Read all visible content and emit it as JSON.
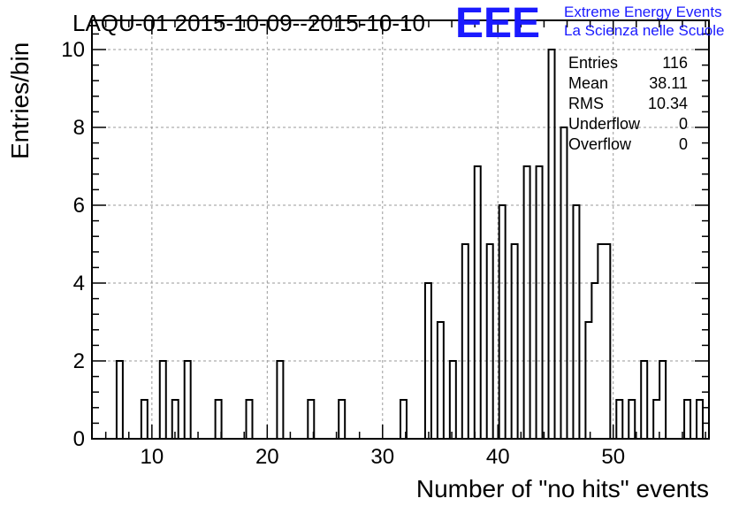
{
  "chart_data": {
    "type": "bar",
    "title": "LAQU-01 2015-10-09--2015-10-10",
    "xlabel": "Number of \"no hits\" events",
    "ylabel": "Entries/bin",
    "xlim": [
      4.8,
      58.3
    ],
    "ylim": [
      0,
      10.75
    ],
    "bin_width": 0.535,
    "x_ticks": [
      "10",
      "20",
      "30",
      "40",
      "50"
    ],
    "x_tick_values": [
      10,
      20,
      30,
      40,
      50
    ],
    "y_ticks": [
      "0",
      "2",
      "4",
      "6",
      "8",
      "10"
    ],
    "y_tick_values": [
      0,
      2,
      4,
      6,
      8,
      10
    ],
    "grid": true,
    "series": [
      {
        "values": [
          0,
          0,
          0,
          0,
          2,
          0,
          0,
          0,
          1,
          0,
          0,
          2,
          0,
          1,
          0,
          2,
          0,
          0,
          0,
          0,
          1,
          0,
          0,
          0,
          0,
          1,
          0,
          0,
          0,
          0,
          2,
          0,
          0,
          0,
          0,
          1,
          0,
          0,
          0,
          0,
          1,
          0,
          0,
          0,
          0,
          0,
          0,
          0,
          0,
          0,
          1,
          0,
          0,
          0,
          4,
          0,
          3,
          0,
          2,
          0,
          5,
          0,
          7,
          0,
          5,
          0,
          6,
          0,
          5,
          0,
          7,
          0,
          7,
          0,
          10,
          0,
          8,
          0,
          6,
          0,
          3,
          4,
          5,
          5,
          0,
          1,
          0,
          1,
          0,
          2,
          0,
          1,
          2,
          0,
          0,
          0,
          1,
          0,
          1,
          0
        ]
      }
    ],
    "stats": {
      "rows": [
        {
          "label": "Entries",
          "value": "116"
        },
        {
          "label": "Mean",
          "value": "38.11"
        },
        {
          "label": "RMS",
          "value": "10.34"
        },
        {
          "label": "Underflow",
          "value": "0"
        },
        {
          "label": "Overflow",
          "value": "0"
        }
      ]
    }
  },
  "logo": {
    "mark": "EEE",
    "line1": "Extreme Energy Events",
    "line2": "La Scienza nelle Scuole",
    "color": "#1a1aff"
  },
  "colors": {
    "axis": "#000000",
    "grid": "#9a9a9a",
    "histogram": "#000000"
  }
}
